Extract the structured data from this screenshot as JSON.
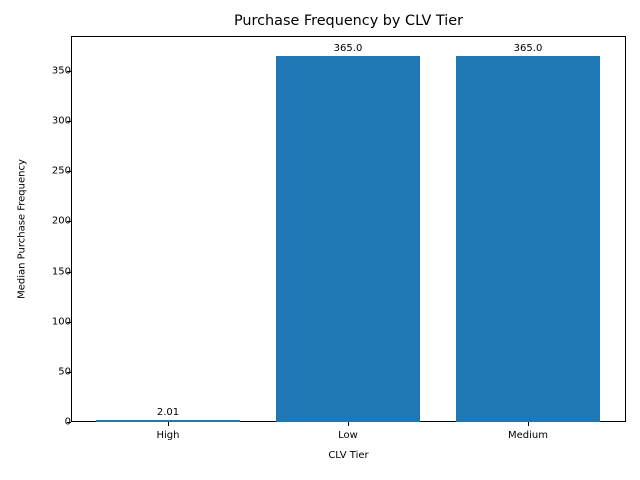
{
  "chart_data": {
    "type": "bar",
    "title": "Purchase Frequency by CLV Tier",
    "xlabel": "CLV Tier",
    "ylabel": "Median Purchase Frequency",
    "categories": [
      "High",
      "Low",
      "Medium"
    ],
    "values": [
      2.01,
      365.0,
      365.0
    ],
    "bar_labels": [
      "2.01",
      "365.0",
      "365.0"
    ],
    "ylim": [
      0,
      385
    ],
    "yticks": [
      0,
      50,
      100,
      150,
      200,
      250,
      300,
      350
    ],
    "grid": false,
    "legend": null,
    "bar_color": "#1f77b4"
  }
}
